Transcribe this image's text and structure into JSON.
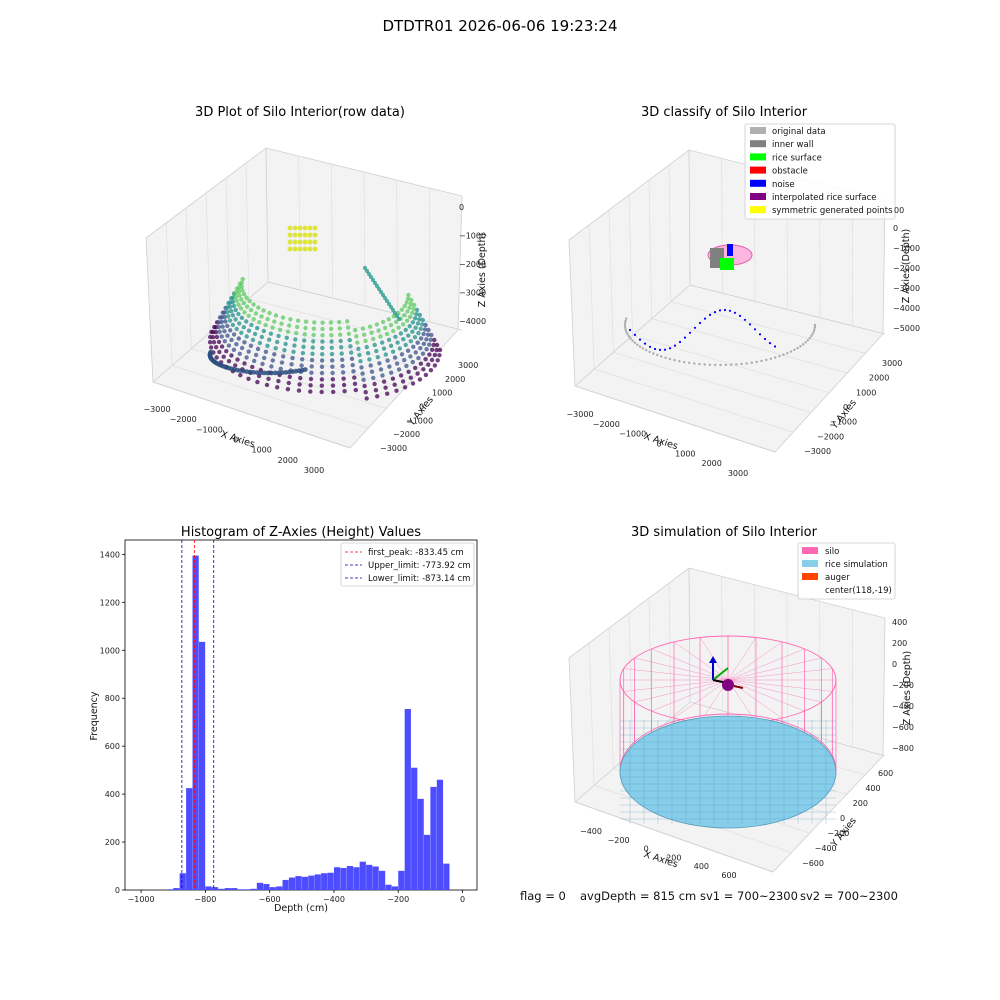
{
  "figure": {
    "title": "DTDTR01 2026-06-06 19:23:24",
    "footer": {
      "flag": "flag = 0",
      "avg_depth": "avgDepth = 815 cm",
      "sv1": "sv1 = 700~2300",
      "sv2": "sv2 = 700~2300"
    }
  },
  "chart_data": [
    {
      "type": "scatter3d",
      "title": "3D Plot of Silo Interior(row data)",
      "xlabel": "X Axies",
      "ylabel": "Y Axies",
      "zlabel": "Z Axies (Depth)",
      "x_ticks": [
        "−3000",
        "−2000",
        "−1000",
        "0",
        "1000",
        "2000",
        "3000"
      ],
      "y_ticks": [
        "−3000",
        "−2000",
        "−1000",
        "0",
        "1000",
        "2000",
        "3000"
      ],
      "z_ticks": [
        "0",
        "−1000",
        "−2000",
        "−3000",
        "−4000"
      ],
      "colormap": [
        "#440154",
        "#3b528b",
        "#21918c",
        "#5ec962",
        "#fde725"
      ]
    },
    {
      "type": "scatter3d",
      "title": "3D classify of Silo Interior",
      "xlabel": "X Axies",
      "ylabel": "Y Axies",
      "zlabel": "Z Axies (Depth)",
      "x_ticks": [
        "−3000",
        "−2000",
        "−1000",
        "0",
        "1000",
        "2000",
        "3000"
      ],
      "y_ticks": [
        "−3000",
        "−2000",
        "−1000",
        "0",
        "1000",
        "2000",
        "3000"
      ],
      "z_ticks": [
        "0",
        "−1000",
        "−2000",
        "−3000",
        "−4000",
        "−5000"
      ],
      "legend": [
        {
          "label": "original data",
          "color": "#b0b0b0"
        },
        {
          "label": "inner wall",
          "color": "#808080"
        },
        {
          "label": "rice surface",
          "color": "#00ff00"
        },
        {
          "label": "obstacle",
          "color": "#ff0000"
        },
        {
          "label": "noise",
          "color": "#0000ff"
        },
        {
          "label": "interpolated rice surface",
          "color": "#800080"
        },
        {
          "label": "symmetric generated points",
          "color": "#ffff00"
        }
      ],
      "legend_extra_tick": "00"
    },
    {
      "type": "bar",
      "title": "Histogram of Z-Axies (Height) Values",
      "xlabel": "Depth (cm)",
      "ylabel": "Frequency",
      "xlim": [
        -1050,
        45
      ],
      "ylim": [
        0,
        1460
      ],
      "x_ticks": [
        -1000,
        -800,
        -600,
        -400,
        -200,
        0
      ],
      "x_tick_labels": [
        "−1000",
        "−800",
        "−600",
        "−400",
        "−200",
        "0"
      ],
      "y_ticks": [
        0,
        200,
        400,
        600,
        800,
        1000,
        1200,
        1400
      ],
      "bin_width": 20,
      "bar_color": "#4d4dff",
      "bins": [
        [
          -920,
          3
        ],
        [
          -900,
          8
        ],
        [
          -880,
          70
        ],
        [
          -860,
          425
        ],
        [
          -840,
          1395
        ],
        [
          -820,
          1035
        ],
        [
          -800,
          15
        ],
        [
          -780,
          12
        ],
        [
          -760,
          5
        ],
        [
          -740,
          8
        ],
        [
          -720,
          8
        ],
        [
          -700,
          3
        ],
        [
          -680,
          3
        ],
        [
          -660,
          5
        ],
        [
          -640,
          30
        ],
        [
          -620,
          25
        ],
        [
          -600,
          12
        ],
        [
          -580,
          15
        ],
        [
          -560,
          42
        ],
        [
          -540,
          52
        ],
        [
          -520,
          58
        ],
        [
          -500,
          55
        ],
        [
          -480,
          60
        ],
        [
          -460,
          65
        ],
        [
          -440,
          70
        ],
        [
          -420,
          72
        ],
        [
          -400,
          95
        ],
        [
          -380,
          92
        ],
        [
          -360,
          100
        ],
        [
          -340,
          95
        ],
        [
          -320,
          118
        ],
        [
          -300,
          105
        ],
        [
          -280,
          98
        ],
        [
          -260,
          80
        ],
        [
          -240,
          22
        ],
        [
          -220,
          15
        ],
        [
          -200,
          80
        ],
        [
          -180,
          755
        ],
        [
          -160,
          510
        ],
        [
          -140,
          380
        ],
        [
          -120,
          230
        ],
        [
          -100,
          430
        ],
        [
          -80,
          460
        ],
        [
          -60,
          110
        ]
      ],
      "vlines": [
        {
          "name": "first_peak",
          "label": "first_peak: -833.45 cm",
          "x": -833.45,
          "color": "#ff0000"
        },
        {
          "name": "upper_limit",
          "label": "Upper_limit: -773.92 cm",
          "x": -773.92,
          "color": "#0000aa"
        },
        {
          "name": "lower_limit",
          "label": "Lower_limit: -873.14 cm",
          "x": -873.14,
          "color": "#0000aa"
        }
      ],
      "legend_position": "top-right"
    },
    {
      "type": "surface3d",
      "title": "3D simulation of Silo Interior",
      "xlabel": "X Axies",
      "ylabel": "Y Axies",
      "zlabel": "Z Axies (Depth)",
      "x_ticks": [
        "−400",
        "−200",
        "0",
        "200",
        "400",
        "600"
      ],
      "y_ticks": [
        "−600",
        "−400",
        "−200",
        "0",
        "200",
        "400",
        "600"
      ],
      "z_ticks": [
        "400",
        "200",
        "0",
        "−200",
        "−400",
        "−600",
        "−800"
      ],
      "legend": [
        {
          "label": "silo",
          "color": "#ff69b4"
        },
        {
          "label": "rice simulation",
          "color": "#87ceeb"
        },
        {
          "label": "auger",
          "color": "#ff4500"
        },
        {
          "label": "center(118,-19)",
          "color": ""
        }
      ]
    }
  ]
}
